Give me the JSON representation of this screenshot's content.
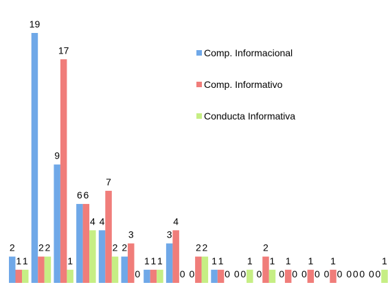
{
  "chart_data": {
    "type": "bar",
    "title": "",
    "xlabel": "",
    "ylabel": "",
    "ylim": [
      0,
      19
    ],
    "grid": false,
    "legend_position": "top-right",
    "categories": [
      "",
      "",
      "",
      "",
      "",
      "",
      "",
      "",
      "",
      "",
      "",
      "",
      "",
      "",
      "",
      "",
      "",
      ""
    ],
    "series": [
      {
        "name": "Comp. Informacional",
        "color": "#6fa8e8",
        "values": [
          2,
          19,
          9,
          6,
          4,
          2,
          1,
          3,
          0,
          1,
          0,
          0,
          0,
          0,
          0,
          0,
          0,
          0
        ]
      },
      {
        "name": "Comp. Informativo",
        "color": "#f07d7a",
        "values": [
          1,
          2,
          17,
          6,
          7,
          3,
          1,
          4,
          2,
          1,
          0,
          2,
          1,
          1,
          1,
          0,
          0,
          1
        ]
      },
      {
        "name": "Conducta Informativa",
        "color": "#c6ee84",
        "values": [
          1,
          2,
          1,
          4,
          2,
          0,
          1,
          0,
          2,
          0,
          1,
          1,
          0,
          0,
          0,
          0,
          1,
          1
        ]
      }
    ]
  }
}
